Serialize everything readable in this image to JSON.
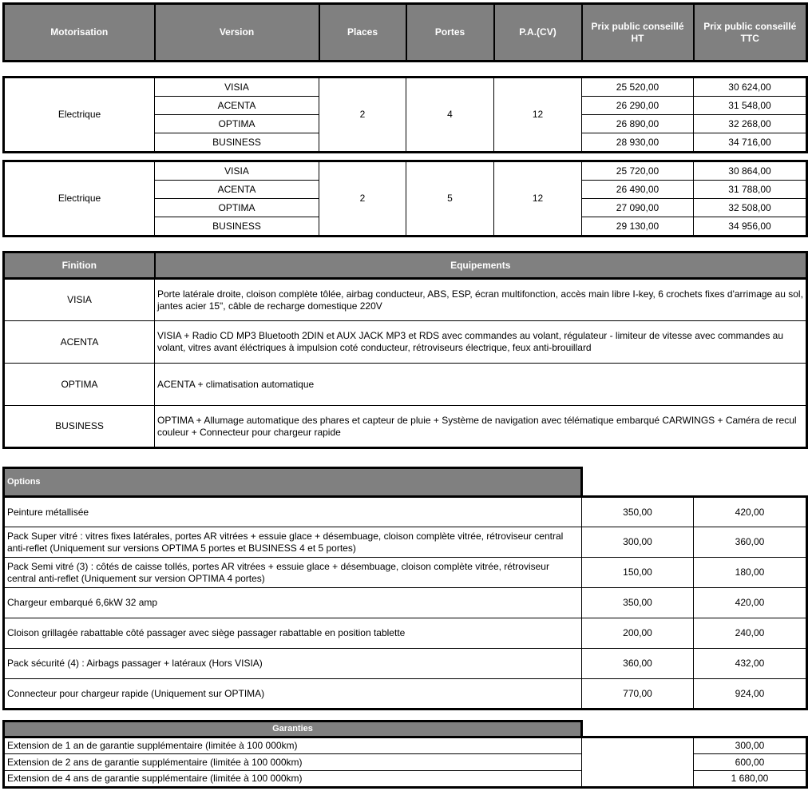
{
  "header": {
    "cols": [
      "Motorisation",
      "Version",
      "Places",
      "Portes",
      "P.A.(CV)",
      "Prix public conseillé HT",
      "Prix public conseillé TTC"
    ]
  },
  "groups": [
    {
      "motorisation": "Electrique",
      "places": "2",
      "portes": "4",
      "pa": "12",
      "versions": [
        {
          "name": "VISIA",
          "ht": "25 520,00",
          "ttc": "30 624,00"
        },
        {
          "name": "ACENTA",
          "ht": "26 290,00",
          "ttc": "31 548,00"
        },
        {
          "name": "OPTIMA",
          "ht": "26 890,00",
          "ttc": "32 268,00"
        },
        {
          "name": "BUSINESS",
          "ht": "28 930,00",
          "ttc": "34 716,00"
        }
      ]
    },
    {
      "motorisation": "Electrique",
      "places": "2",
      "portes": "5",
      "pa": "12",
      "versions": [
        {
          "name": "VISIA",
          "ht": "25 720,00",
          "ttc": "30 864,00"
        },
        {
          "name": "ACENTA",
          "ht": "26 490,00",
          "ttc": "31 788,00"
        },
        {
          "name": "OPTIMA",
          "ht": "27 090,00",
          "ttc": "32 508,00"
        },
        {
          "name": "BUSINESS",
          "ht": "29 130,00",
          "ttc": "34 956,00"
        }
      ]
    }
  ],
  "finitions": {
    "header": [
      "Finition",
      "Equipements"
    ],
    "rows": [
      {
        "name": "VISIA",
        "equip": "Porte latérale droite, cloison complète tôlée, airbag conducteur, ABS, ESP, écran multifonction, accès main libre I-key, 6 crochets fixes d'arrimage au sol, jantes acier 15\", câble de recharge domestique 220V"
      },
      {
        "name": "ACENTA",
        "equip": "VISIA + Radio CD MP3 Bluetooth 2DIN et AUX JACK MP3 et RDS avec commandes au volant, régulateur - limiteur de vitesse avec commandes au volant, vitres avant éléctriques à impulsion coté conducteur, rétroviseurs électrique, feux anti-brouillard"
      },
      {
        "name": "OPTIMA",
        "equip": "ACENTA + climatisation automatique"
      },
      {
        "name": "BUSINESS",
        "equip": "OPTIMA + Allumage automatique des phares et capteur de pluie + Système de navigation avec télématique embarqué CARWINGS + Caméra de recul couleur + Connecteur pour chargeur rapide"
      }
    ]
  },
  "options": {
    "header": "Options",
    "rows": [
      {
        "label": "Peinture métallisée",
        "ht": "350,00",
        "ttc": "420,00"
      },
      {
        "label": "Pack Super vitré : vitres fixes latérales, portes AR vitrées + essuie glace + désembuage, cloison complète vitrée, rétroviseur central anti-reflet (Uniquement sur versions OPTIMA 5 portes et BUSINESS 4 et 5 portes)",
        "ht": "300,00",
        "ttc": "360,00"
      },
      {
        "label": "Pack Semi vitré (3) : côtés de caisse tollés, portes AR vitrées + essuie glace + désembuage, cloison complète vitrée, rétroviseur central anti-reflet (Uniquement sur version OPTIMA 4 portes)",
        "ht": "150,00",
        "ttc": "180,00"
      },
      {
        "label": "Chargeur embarqué 6,6kW 32 amp",
        "ht": "350,00",
        "ttc": "420,00"
      },
      {
        "label": "Cloison grillagée rabattable côté passager avec siège passager rabattable en position tablette",
        "ht": "200,00",
        "ttc": "240,00"
      },
      {
        "label": "Pack sécurité (4) : Airbags passager + latéraux (Hors VISIA)",
        "ht": "360,00",
        "ttc": "432,00"
      },
      {
        "label": "Connecteur pour chargeur rapide (Uniquement sur OPTIMA)",
        "ht": "770,00",
        "ttc": "924,00"
      }
    ]
  },
  "garanties": {
    "header": "Garanties",
    "rows": [
      {
        "label": "Extension de 1 an de garantie supplémentaire (limitée à 100 000km)",
        "ttc": "300,00"
      },
      {
        "label": "Extension de 2 ans de garantie supplémentaire (limitée à 100 000km)",
        "ttc": "600,00"
      },
      {
        "label": "Extension de 4 ans de garantie supplémentaire (limitée à 100 000km)",
        "ttc": "1 680,00"
      }
    ]
  }
}
